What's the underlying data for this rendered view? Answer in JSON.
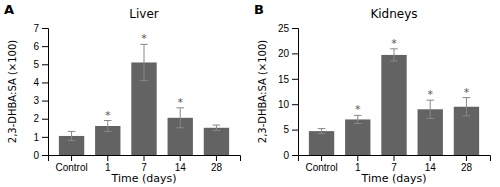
{
  "chart_data": [
    {
      "type": "bar",
      "title": "Liver",
      "label": "A",
      "categories": [
        "Control",
        "1",
        "7",
        "14",
        "28"
      ],
      "values": [
        1.05,
        1.6,
        5.1,
        2.05,
        1.5
      ],
      "errors": [
        0.25,
        0.3,
        1.0,
        0.55,
        0.15
      ],
      "annotations": [
        null,
        "*",
        "*",
        "*",
        null
      ],
      "ylim": [
        0,
        7
      ],
      "yticks": [
        0,
        1,
        2,
        3,
        4,
        5,
        6,
        7
      ],
      "ylabel": "2,3-DHBA:SA (×100)",
      "xlabel": "Time (days)",
      "color": "#636363"
    },
    {
      "type": "bar",
      "title": "Kidneys",
      "label": "B",
      "categories": [
        "Control",
        "1",
        "7",
        "14",
        "28"
      ],
      "values": [
        4.7,
        7.0,
        19.7,
        9.0,
        9.5
      ],
      "errors": [
        0.5,
        0.8,
        1.2,
        1.8,
        1.8
      ],
      "annotations": [
        null,
        "*",
        "*",
        "*",
        "*"
      ],
      "ylim": [
        0,
        25
      ],
      "yticks": [
        0,
        5,
        10,
        15,
        20,
        25
      ],
      "ylabel": "2,3-DHBA:SA (×100)",
      "xlabel": "Time (days)",
      "color": "#636363"
    }
  ]
}
